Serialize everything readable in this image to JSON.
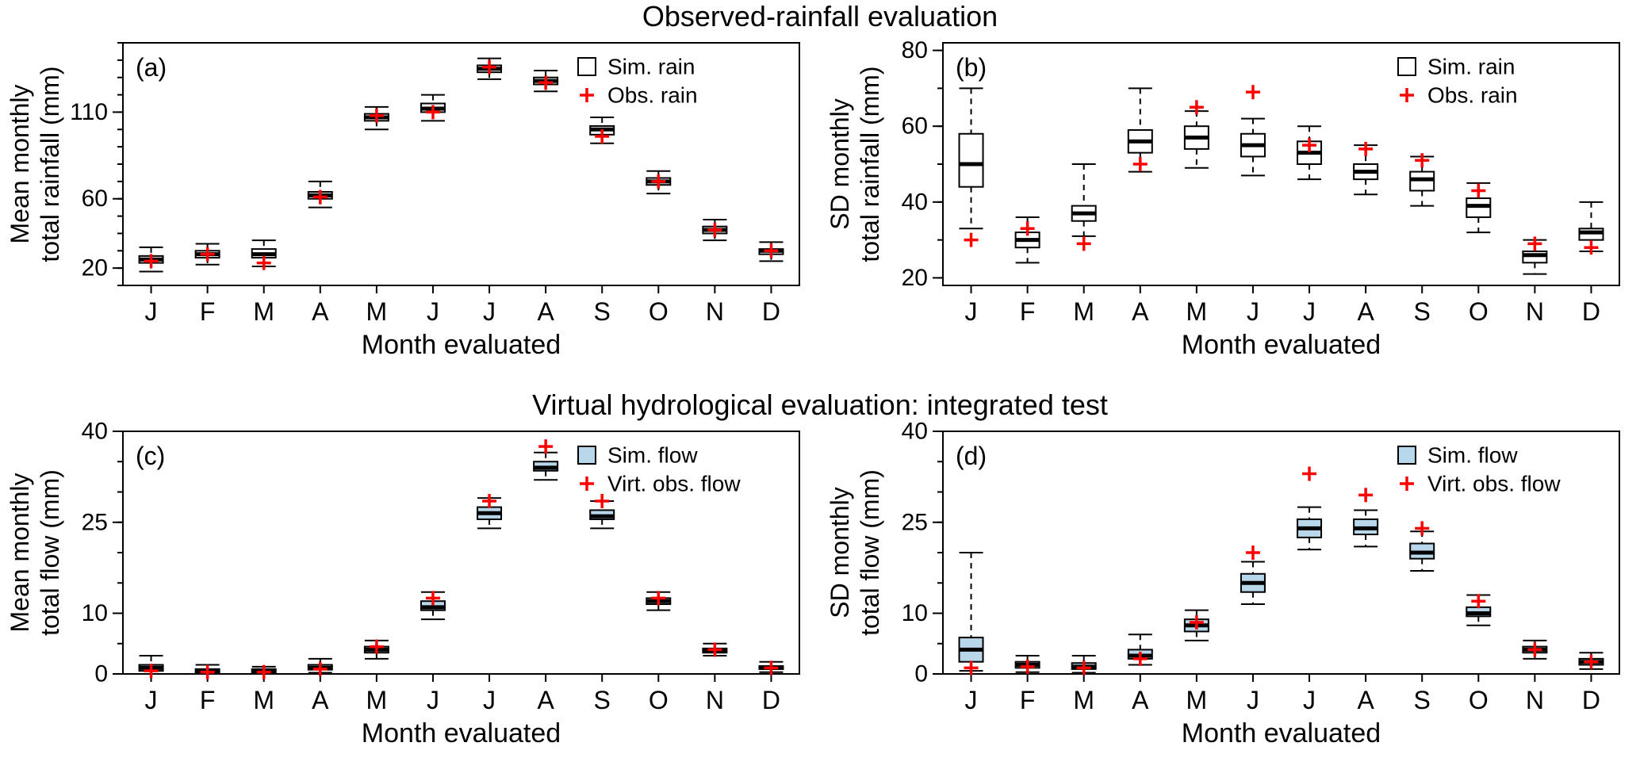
{
  "titles": {
    "top": "Observed-rainfall evaluation",
    "bottom": "Virtual hydrological evaluation: integrated test"
  },
  "colors": {
    "obs": "#ff0000",
    "axis": "#000000",
    "rain_box_fill": "#ffffff",
    "flow_box_fill": "#b9d7ea"
  },
  "box_stats_format": "min, q1, median, q3, max",
  "chart_data": [
    {
      "type": "boxplot",
      "panel_label": "(a)",
      "ylabel_lines": [
        "Mean monthly",
        "total rainfall (mm)"
      ],
      "xlabel": "Month evaluated",
      "categories": [
        "J",
        "F",
        "M",
        "A",
        "M",
        "J",
        "J",
        "A",
        "S",
        "O",
        "N",
        "D"
      ],
      "ylim": [
        10,
        150
      ],
      "yticks": [
        20,
        60,
        110
      ],
      "yticks_minor": [
        10,
        20,
        30,
        40,
        50,
        60,
        70,
        80,
        90,
        100,
        110,
        120,
        130,
        140,
        150
      ],
      "box_fill": "#ffffff",
      "legend": [
        {
          "symbol": "box",
          "label": "Sim. rain"
        },
        {
          "symbol": "plus",
          "label": "Obs. rain"
        }
      ],
      "boxes": [
        [
          18,
          23,
          25,
          27,
          32
        ],
        [
          22,
          26,
          28,
          30,
          34
        ],
        [
          21,
          26,
          28,
          31,
          36
        ],
        [
          55,
          60,
          62,
          64,
          70
        ],
        [
          100,
          105,
          107,
          109,
          113
        ],
        [
          105,
          110,
          112,
          115,
          120
        ],
        [
          129,
          133,
          135,
          137,
          141
        ],
        [
          122,
          126,
          128,
          130,
          134
        ],
        [
          92,
          97,
          100,
          102,
          107
        ],
        [
          63,
          68,
          70,
          72,
          76
        ],
        [
          36,
          40,
          42,
          44,
          48
        ],
        [
          24,
          28,
          30,
          31,
          35
        ]
      ],
      "obs": [
        24,
        28,
        23,
        61,
        108,
        110,
        136,
        127,
        96,
        70,
        42,
        30
      ]
    },
    {
      "type": "boxplot",
      "panel_label": "(b)",
      "ylabel_lines": [
        "SD monthly",
        "total rainfall (mm)"
      ],
      "xlabel": "Month evaluated",
      "categories": [
        "J",
        "F",
        "M",
        "A",
        "M",
        "J",
        "J",
        "A",
        "S",
        "O",
        "N",
        "D"
      ],
      "ylim": [
        18,
        82
      ],
      "yticks": [
        20,
        40,
        60,
        80
      ],
      "yticks_minor": [
        20,
        30,
        40,
        50,
        60,
        70,
        80
      ],
      "box_fill": "#ffffff",
      "legend": [
        {
          "symbol": "box",
          "label": "Sim. rain"
        },
        {
          "symbol": "plus",
          "label": "Obs. rain"
        }
      ],
      "boxes": [
        [
          33,
          44,
          50,
          58,
          70
        ],
        [
          24,
          28,
          30,
          32,
          36
        ],
        [
          31,
          35,
          37,
          39,
          50
        ],
        [
          48,
          53,
          56,
          59,
          70
        ],
        [
          49,
          54,
          57,
          60,
          64
        ],
        [
          47,
          52,
          55,
          58,
          62
        ],
        [
          46,
          50,
          53,
          56,
          60
        ],
        [
          42,
          46,
          48,
          50,
          55
        ],
        [
          39,
          43,
          46,
          48,
          52
        ],
        [
          32,
          36,
          39,
          41,
          45
        ],
        [
          21,
          24,
          26,
          27,
          30
        ],
        [
          27,
          30,
          32,
          33,
          40
        ]
      ],
      "obs": [
        30,
        33,
        29,
        50,
        65,
        69,
        55,
        54,
        51,
        43,
        29,
        28
      ]
    },
    {
      "type": "boxplot",
      "panel_label": "(c)",
      "ylabel_lines": [
        "Mean monthly",
        "total flow (mm)"
      ],
      "xlabel": "Month evaluated",
      "categories": [
        "J",
        "F",
        "M",
        "A",
        "M",
        "J",
        "J",
        "A",
        "S",
        "O",
        "N",
        "D"
      ],
      "ylim": [
        0,
        40
      ],
      "yticks": [
        0,
        10,
        25,
        40
      ],
      "yticks_minor": [
        0,
        5,
        10,
        15,
        20,
        25,
        30,
        35,
        40
      ],
      "box_fill": "#b9d7ea",
      "legend": [
        {
          "symbol": "box",
          "label": "Sim. flow"
        },
        {
          "symbol": "plus",
          "label": "Virt. obs. flow"
        }
      ],
      "boxes": [
        [
          0,
          0.5,
          1,
          1.5,
          3
        ],
        [
          0,
          0.2,
          0.5,
          0.8,
          1.5
        ],
        [
          0,
          0.2,
          0.5,
          0.8,
          1.2
        ],
        [
          0.2,
          0.7,
          1,
          1.5,
          2.5
        ],
        [
          2.5,
          3.5,
          4,
          4.5,
          5.5
        ],
        [
          9,
          10.5,
          11,
          12,
          13.5
        ],
        [
          24,
          25.5,
          26.5,
          27.5,
          29
        ],
        [
          32,
          33.5,
          34,
          35,
          36.5
        ],
        [
          24,
          25.5,
          26,
          27,
          28.5
        ],
        [
          10.5,
          11.5,
          12,
          12.5,
          13.5
        ],
        [
          3,
          3.5,
          3.8,
          4.2,
          5
        ],
        [
          0.3,
          0.8,
          1,
          1.3,
          2
        ]
      ],
      "obs": [
        0.5,
        0.3,
        0.3,
        0.8,
        4.5,
        12.5,
        28.5,
        37.5,
        28.5,
        12.5,
        4,
        1
      ]
    },
    {
      "type": "boxplot",
      "panel_label": "(d)",
      "ylabel_lines": [
        "SD monthly",
        "total flow (mm)"
      ],
      "xlabel": "Month evaluated",
      "categories": [
        "J",
        "F",
        "M",
        "A",
        "M",
        "J",
        "J",
        "A",
        "S",
        "O",
        "N",
        "D"
      ],
      "ylim": [
        0,
        40
      ],
      "yticks": [
        0,
        10,
        25,
        40
      ],
      "yticks_minor": [
        0,
        5,
        10,
        15,
        20,
        25,
        30,
        35,
        40
      ],
      "box_fill": "#b9d7ea",
      "legend": [
        {
          "symbol": "box",
          "label": "Sim. flow"
        },
        {
          "symbol": "plus",
          "label": "Virt. obs. flow"
        }
      ],
      "boxes": [
        [
          0.5,
          2,
          4,
          6,
          20
        ],
        [
          0.3,
          1,
          1.5,
          2,
          3
        ],
        [
          0.2,
          0.8,
          1.2,
          1.8,
          3
        ],
        [
          1.5,
          2.5,
          3,
          4,
          6.5
        ],
        [
          5.5,
          7,
          8,
          9,
          10.5
        ],
        [
          11.5,
          13.5,
          15,
          16.5,
          18.5
        ],
        [
          20.5,
          22.5,
          24,
          25.5,
          27.5
        ],
        [
          21,
          23,
          24,
          25.5,
          27
        ],
        [
          17,
          19,
          20,
          21.5,
          23.5
        ],
        [
          8,
          9.5,
          10,
          11,
          13
        ],
        [
          2.5,
          3.5,
          4,
          4.5,
          5.5
        ],
        [
          0.8,
          1.5,
          2,
          2.5,
          3.5
        ]
      ],
      "obs": [
        1,
        1.2,
        1,
        2.5,
        8.5,
        20,
        33,
        29.5,
        24,
        12,
        4,
        2
      ]
    }
  ]
}
